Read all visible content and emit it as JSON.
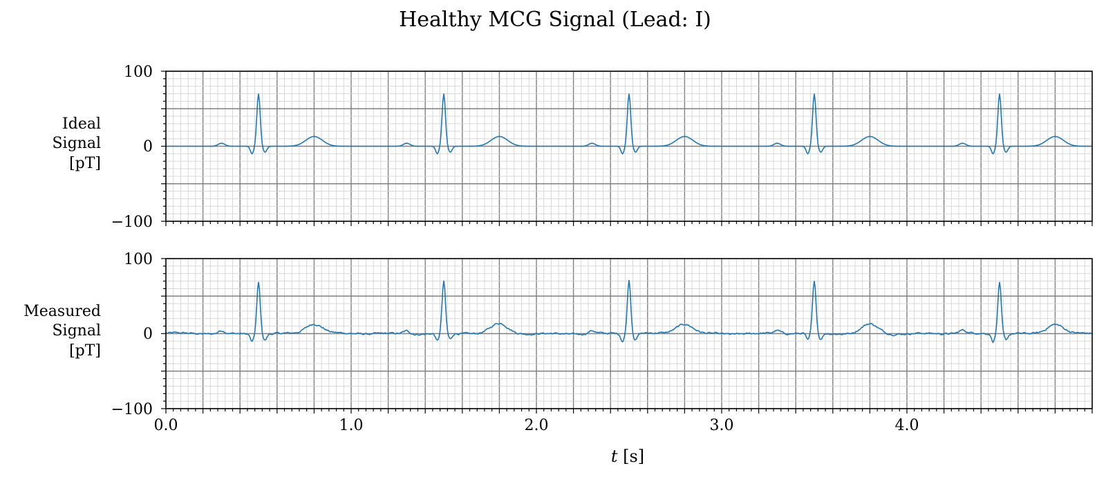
{
  "chart_data": {
    "type": "line",
    "title": "Healthy MCG Signal (Lead: I)",
    "xlabel_var": "t",
    "xlabel_unit": " [s]",
    "xlim": [
      0.0,
      5.0
    ],
    "x_ticks": [
      0.0,
      1.0,
      2.0,
      3.0,
      4.0
    ],
    "x_tick_labels": [
      "0.0",
      "1.0",
      "2.0",
      "3.0",
      "4.0"
    ],
    "grid": true,
    "line_color": "#1f77b4",
    "beat": {
      "sample_step": 0.005,
      "r_times": [
        0.5,
        1.5,
        2.5,
        3.5,
        4.5
      ],
      "p_wave": {
        "offset": -0.2,
        "amplitude": 4
      },
      "q_wave": {
        "offset": -0.035,
        "amplitude": -10
      },
      "r_wave": {
        "offset": 0.0,
        "amplitude": 70
      },
      "s_wave": {
        "offset": 0.035,
        "amplitude": -8
      },
      "t_wave": {
        "offset": 0.3,
        "amplitude": 13
      }
    },
    "panels": [
      {
        "name": "Ideal Signal",
        "ylabel_lines": [
          "Ideal",
          "Signal",
          "[pT]"
        ],
        "ylim": [
          -100,
          100
        ],
        "y_ticks": [
          100,
          0,
          -100
        ],
        "y_tick_labels": [
          "100",
          "0",
          "−100"
        ],
        "noise": false,
        "series": [
          {
            "name": "Ideal Signal"
          }
        ]
      },
      {
        "name": "Measured Signal",
        "ylabel_lines": [
          "Measured",
          "Signal",
          "[pT]"
        ],
        "ylim": [
          -100,
          100
        ],
        "y_ticks": [
          100,
          0,
          -100
        ],
        "y_tick_labels": [
          "100",
          "0",
          "−100"
        ],
        "noise": true,
        "r_amplitudes": [
          69,
          69,
          72,
          70,
          68
        ],
        "series": [
          {
            "name": "Measured Signal"
          }
        ]
      }
    ]
  }
}
